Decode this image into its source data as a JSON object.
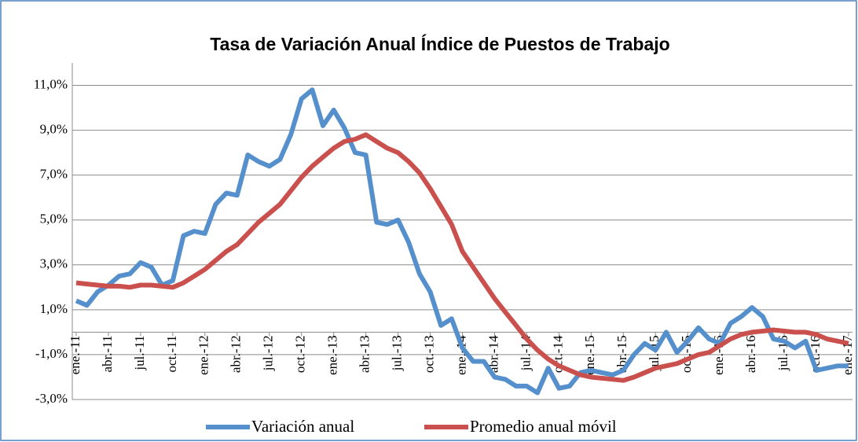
{
  "chart_data": {
    "type": "line",
    "title": "Tasa de Variación Anual Índice de Puestos de Trabajo",
    "categories": [
      "ene.-11",
      null,
      null,
      "abr.-11",
      null,
      null,
      "jul.-11",
      null,
      null,
      "oct.-11",
      null,
      null,
      "ene.-12",
      null,
      null,
      "abr.-12",
      null,
      null,
      "jul.-12",
      null,
      null,
      "oct.-12",
      null,
      null,
      "ene.-13",
      null,
      null,
      "abr.-13",
      null,
      null,
      "jul.-13",
      null,
      null,
      "oct.-13",
      null,
      null,
      "ene.-14",
      null,
      null,
      "abr.-14",
      null,
      null,
      "jul.-14",
      null,
      null,
      "oct.-14",
      null,
      null,
      "ene.-15",
      null,
      null,
      "abr.-15",
      null,
      null,
      "jul.-15",
      null,
      null,
      "oct.-15",
      null,
      null,
      "ene.-16",
      null,
      null,
      "abr.-16",
      null,
      null,
      "jul.-16",
      null,
      null,
      "oct.-16",
      null,
      null,
      "ene.-17"
    ],
    "series": [
      {
        "name": "Variación anual",
        "color": "#5590cc",
        "values": [
          1.4,
          1.2,
          1.8,
          2.1,
          2.5,
          2.6,
          3.1,
          2.9,
          2.1,
          2.3,
          4.3,
          4.5,
          4.4,
          5.7,
          6.2,
          6.1,
          7.9,
          7.6,
          7.4,
          7.7,
          8.8,
          10.4,
          10.8,
          9.2,
          9.9,
          9.1,
          8.0,
          7.9,
          4.9,
          4.8,
          5.0,
          4.0,
          2.6,
          1.8,
          0.3,
          0.6,
          -0.7,
          -1.3,
          -1.3,
          -2.0,
          -2.1,
          -2.4,
          -2.4,
          -2.7,
          -1.6,
          -2.5,
          -2.4,
          -1.8,
          -1.7,
          -1.8,
          -1.9,
          -1.7,
          -1.0,
          -0.5,
          -0.8,
          0.0,
          -0.9,
          -0.4,
          0.2,
          -0.3,
          -0.5,
          0.4,
          0.7,
          1.1,
          0.7,
          -0.3,
          -0.4,
          -0.7,
          -0.4,
          -1.7,
          -1.6,
          -1.5,
          -1.5
        ]
      },
      {
        "name": "Promedio anual móvil",
        "color": "#c9504d",
        "values": [
          2.2,
          2.15,
          2.1,
          2.05,
          2.05,
          2.0,
          2.1,
          2.1,
          2.05,
          2.0,
          2.2,
          2.5,
          2.8,
          3.2,
          3.6,
          3.9,
          4.4,
          4.9,
          5.3,
          5.7,
          6.3,
          6.9,
          7.4,
          7.8,
          8.2,
          8.5,
          8.6,
          8.8,
          8.5,
          8.2,
          8.0,
          7.6,
          7.1,
          6.4,
          5.6,
          4.8,
          3.6,
          2.9,
          2.2,
          1.5,
          0.9,
          0.3,
          -0.3,
          -0.8,
          -1.2,
          -1.5,
          -1.7,
          -1.9,
          -2.0,
          -2.05,
          -2.1,
          -2.15,
          -2.0,
          -1.8,
          -1.6,
          -1.5,
          -1.4,
          -1.2,
          -1.0,
          -0.9,
          -0.6,
          -0.3,
          -0.1,
          0.0,
          0.05,
          0.1,
          0.05,
          0.0,
          0.0,
          -0.1,
          -0.3,
          -0.4,
          -0.5
        ]
      }
    ],
    "ylim": [
      -3,
      12
    ],
    "yticks": [
      {
        "value": -3,
        "label": "-3,0%"
      },
      {
        "value": -1,
        "label": "-1,0%"
      },
      {
        "value": 1,
        "label": "1,0%"
      },
      {
        "value": 3,
        "label": "3,0%"
      },
      {
        "value": 5,
        "label": "5,0%"
      },
      {
        "value": 7,
        "label": "7,0%"
      },
      {
        "value": 9,
        "label": "9,0%"
      },
      {
        "value": 11,
        "label": "11,0%"
      }
    ],
    "grid": true
  }
}
